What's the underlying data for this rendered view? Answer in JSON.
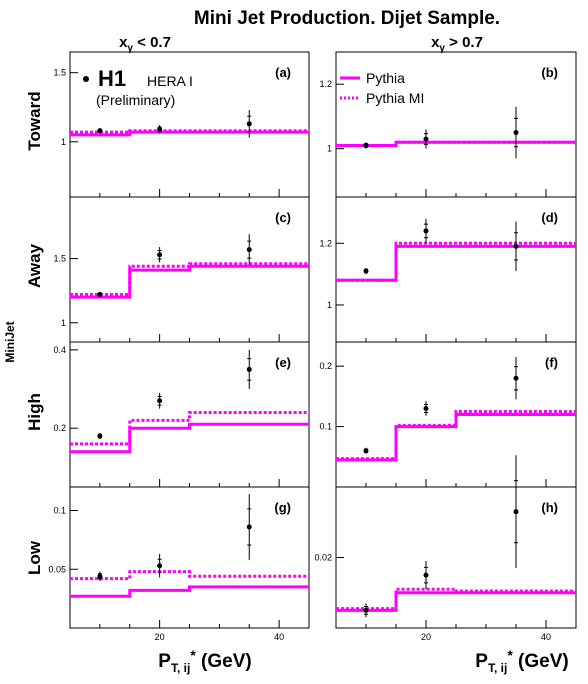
{
  "title": "Mini Jet Production.  Dijet Sample.",
  "columns": [
    {
      "pre": "x",
      "sub": "γ",
      "post": " < 0.7"
    },
    {
      "pre": "x",
      "sub": "γ",
      "post": " > 0.7"
    }
  ],
  "rows": [
    "Toward",
    "Away",
    "High",
    "Low"
  ],
  "ylabel_fragment": "MiniJet",
  "xlabel": {
    "main": "P",
    "sub": "T, ij",
    "sup": "*",
    "unit": " (GeV)"
  },
  "legend": {
    "experiment": "H1",
    "experiment_sub": "HERA I",
    "status": "(Preliminary)",
    "models": [
      {
        "name": "Pythia",
        "style": "solid"
      },
      {
        "name": "Pythia MI",
        "style": "dotted"
      }
    ]
  },
  "colors": {
    "model": "#ff00ff",
    "data": "#000000",
    "frame": "#000000"
  },
  "chart_data": [
    {
      "label": "(a)",
      "row": "Toward",
      "column": 0,
      "type": "line",
      "xlim": [
        5,
        45
      ],
      "ylim": [
        0.6,
        1.65
      ],
      "yticks": [
        1.0,
        1.5
      ],
      "xticks": [
        20,
        40
      ],
      "data": {
        "x": [
          10,
          20,
          35
        ],
        "y": [
          1.08,
          1.09,
          1.13
        ],
        "err": [
          0.02,
          0.03,
          0.1
        ]
      },
      "bin_edges": [
        5,
        15,
        25,
        45
      ],
      "series": [
        {
          "name": "Pythia",
          "values": [
            1.05,
            1.07,
            1.07
          ]
        },
        {
          "name": "Pythia MI",
          "values": [
            1.07,
            1.08,
            1.08
          ]
        }
      ]
    },
    {
      "label": "(b)",
      "row": "Toward",
      "column": 1,
      "type": "line",
      "xlim": [
        5,
        45
      ],
      "ylim": [
        0.85,
        1.3
      ],
      "yticks": [
        1.0,
        1.2
      ],
      "xticks": [
        20,
        40
      ],
      "data": {
        "x": [
          10,
          20,
          35
        ],
        "y": [
          1.01,
          1.03,
          1.05
        ],
        "err": [
          0.01,
          0.03,
          0.08
        ]
      },
      "bin_edges": [
        5,
        15,
        25,
        45
      ],
      "series": [
        {
          "name": "Pythia",
          "values": [
            1.01,
            1.02,
            1.02
          ]
        },
        {
          "name": "Pythia MI",
          "values": [
            1.01,
            1.02,
            1.02
          ]
        }
      ]
    },
    {
      "label": "(c)",
      "row": "Away",
      "column": 0,
      "type": "line",
      "xlim": [
        5,
        45
      ],
      "ylim": [
        0.85,
        1.98
      ],
      "yticks": [
        1.0,
        1.5
      ],
      "xticks": [
        20,
        40
      ],
      "data": {
        "x": [
          10,
          20,
          35
        ],
        "y": [
          1.22,
          1.53,
          1.57
        ],
        "err": [
          0.02,
          0.06,
          0.12
        ]
      },
      "bin_edges": [
        5,
        15,
        25,
        45
      ],
      "series": [
        {
          "name": "Pythia",
          "values": [
            1.2,
            1.41,
            1.44
          ]
        },
        {
          "name": "Pythia MI",
          "values": [
            1.22,
            1.44,
            1.46
          ]
        }
      ]
    },
    {
      "label": "(d)",
      "row": "Away",
      "column": 1,
      "type": "line",
      "xlim": [
        5,
        45
      ],
      "ylim": [
        0.88,
        1.35
      ],
      "yticks": [
        1.0,
        1.2
      ],
      "xticks": [
        20,
        40
      ],
      "data": {
        "x": [
          10,
          20,
          35
        ],
        "y": [
          1.11,
          1.24,
          1.19
        ],
        "err": [
          0.01,
          0.04,
          0.08
        ]
      },
      "bin_edges": [
        5,
        15,
        25,
        45
      ],
      "series": [
        {
          "name": "Pythia",
          "values": [
            1.08,
            1.19,
            1.19
          ]
        },
        {
          "name": "Pythia MI",
          "values": [
            1.08,
            1.2,
            1.2
          ]
        }
      ]
    },
    {
      "label": "(e)",
      "row": "High",
      "column": 0,
      "type": "line",
      "xlim": [
        5,
        45
      ],
      "ylim": [
        0.05,
        0.42
      ],
      "yticks": [
        0.2,
        0.4
      ],
      "xticks": [
        20,
        40
      ],
      "data": {
        "x": [
          10,
          20,
          35
        ],
        "y": [
          0.18,
          0.27,
          0.35
        ],
        "err": [
          0.008,
          0.02,
          0.05
        ]
      },
      "bin_edges": [
        5,
        15,
        25,
        45
      ],
      "series": [
        {
          "name": "Pythia",
          "values": [
            0.14,
            0.2,
            0.21
          ]
        },
        {
          "name": "Pythia MI",
          "values": [
            0.16,
            0.22,
            0.24
          ]
        }
      ]
    },
    {
      "label": "(f)",
      "row": "High",
      "column": 1,
      "type": "line",
      "xlim": [
        5,
        45
      ],
      "ylim": [
        0.0,
        0.24
      ],
      "yticks": [
        0.1,
        0.2
      ],
      "xticks": [
        20,
        40
      ],
      "data": {
        "x": [
          10,
          20,
          35
        ],
        "y": [
          0.06,
          0.13,
          0.18
        ],
        "err": [
          0.005,
          0.012,
          0.035
        ]
      },
      "bin_edges": [
        5,
        15,
        25,
        45
      ],
      "series": [
        {
          "name": "Pythia",
          "values": [
            0.045,
            0.1,
            0.12
          ]
        },
        {
          "name": "Pythia MI",
          "values": [
            0.047,
            0.102,
            0.125
          ]
        }
      ]
    },
    {
      "label": "(g)",
      "row": "Low",
      "column": 0,
      "type": "line",
      "xlim": [
        5,
        45
      ],
      "ylim": [
        0.0,
        0.12
      ],
      "yticks": [
        0.05,
        0.1
      ],
      "xticks": [
        20,
        40
      ],
      "data": {
        "x": [
          10,
          20,
          35
        ],
        "y": [
          0.044,
          0.053,
          0.086
        ],
        "err": [
          0.004,
          0.01,
          0.028
        ]
      },
      "bin_edges": [
        5,
        15,
        25,
        45
      ],
      "series": [
        {
          "name": "Pythia",
          "values": [
            0.027,
            0.032,
            0.035
          ]
        },
        {
          "name": "Pythia MI",
          "values": [
            0.042,
            0.048,
            0.044
          ]
        }
      ]
    },
    {
      "label": "(h)",
      "row": "Low",
      "column": 1,
      "type": "line",
      "xlim": [
        5,
        45
      ],
      "ylim": [
        0.0,
        0.04
      ],
      "yticks": [
        0.02
      ],
      "xticks": [
        20,
        40
      ],
      "data": {
        "x": [
          10,
          20,
          35
        ],
        "y": [
          0.005,
          0.015,
          0.033
        ],
        "err": [
          0.002,
          0.004,
          0.016
        ]
      },
      "bin_edges": [
        5,
        15,
        25,
        45
      ],
      "series": [
        {
          "name": "Pythia",
          "values": [
            0.005,
            0.01,
            0.01
          ]
        },
        {
          "name": "Pythia MI",
          "values": [
            0.0055,
            0.011,
            0.0105
          ]
        }
      ]
    }
  ]
}
